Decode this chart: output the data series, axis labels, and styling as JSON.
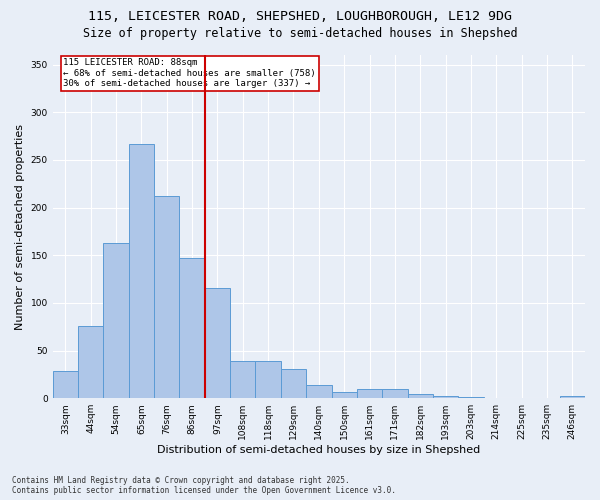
{
  "title1": "115, LEICESTER ROAD, SHEPSHED, LOUGHBOROUGH, LE12 9DG",
  "title2": "Size of property relative to semi-detached houses in Shepshed",
  "xlabel": "Distribution of semi-detached houses by size in Shepshed",
  "ylabel": "Number of semi-detached properties",
  "categories": [
    "33sqm",
    "44sqm",
    "54sqm",
    "65sqm",
    "76sqm",
    "86sqm",
    "97sqm",
    "108sqm",
    "118sqm",
    "129sqm",
    "140sqm",
    "150sqm",
    "161sqm",
    "171sqm",
    "182sqm",
    "193sqm",
    "203sqm",
    "214sqm",
    "225sqm",
    "235sqm",
    "246sqm"
  ],
  "values": [
    29,
    76,
    163,
    267,
    212,
    147,
    116,
    39,
    39,
    31,
    14,
    7,
    10,
    10,
    4,
    2,
    1,
    0,
    0,
    0,
    2
  ],
  "bar_color": "#aec6e8",
  "bar_edge_color": "#5b9bd5",
  "vline_x_index": 5,
  "vline_color": "#cc0000",
  "annotation_title": "115 LEICESTER ROAD: 88sqm",
  "annotation_line1": "← 68% of semi-detached houses are smaller (758)",
  "annotation_line2": "30% of semi-detached houses are larger (337) →",
  "annotation_box_color": "#cc0000",
  "ylim": [
    0,
    360
  ],
  "yticks": [
    0,
    50,
    100,
    150,
    200,
    250,
    300,
    350
  ],
  "footnote1": "Contains HM Land Registry data © Crown copyright and database right 2025.",
  "footnote2": "Contains public sector information licensed under the Open Government Licence v3.0.",
  "bg_color": "#e8eef7",
  "plot_bg_color": "#e8eef7",
  "title_fontsize": 9.5,
  "subtitle_fontsize": 8.5,
  "tick_fontsize": 6.5,
  "label_fontsize": 8,
  "footnote_fontsize": 5.5
}
